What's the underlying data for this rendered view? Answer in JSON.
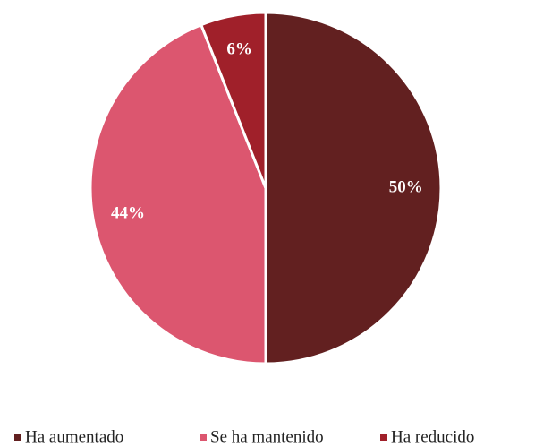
{
  "chart_data": {
    "type": "pie",
    "categories": [
      "Ha aumentado",
      "Se ha mantenido",
      "Ha reducido"
    ],
    "values": [
      50,
      44,
      6
    ],
    "value_labels": [
      "50%",
      "44%",
      "6%"
    ],
    "colors": [
      "#622020",
      "#dc566f",
      "#a0202a"
    ],
    "legend": "bottom"
  }
}
